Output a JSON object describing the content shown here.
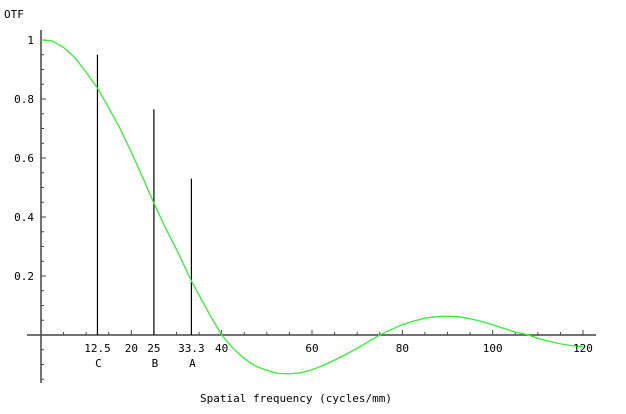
{
  "chart_data": {
    "type": "line",
    "title": "",
    "xlabel": "Spatial frequency (cycles/mm)",
    "ylabel": "OTF",
    "xlim": [
      0,
      120
    ],
    "ylim": [
      -0.16,
      1.0
    ],
    "grid": false,
    "legend": null,
    "x_ticks": [
      {
        "value": 12.5,
        "label": "12.5"
      },
      {
        "value": 20,
        "label": "20"
      },
      {
        "value": 25,
        "label": "25"
      },
      {
        "value": 33.3,
        "label": "33.3"
      },
      {
        "value": 40,
        "label": "40"
      },
      {
        "value": 60,
        "label": "60"
      },
      {
        "value": 80,
        "label": "80"
      },
      {
        "value": 100,
        "label": "100"
      },
      {
        "value": 120,
        "label": "120"
      }
    ],
    "x_minor_tick_step": 5,
    "y_ticks": [
      {
        "value": 0.2,
        "label": "0.2"
      },
      {
        "value": 0.4,
        "label": "0.4"
      },
      {
        "value": 0.6,
        "label": "0.6"
      },
      {
        "value": 0.8,
        "label": "0.8"
      },
      {
        "value": 1.0,
        "label": "1"
      }
    ],
    "y_minor_tick_step": 0.05,
    "series": [
      {
        "name": "OTF",
        "color": "#33ee33",
        "x": [
          0,
          2.5,
          5,
          7.5,
          10,
          12.5,
          15,
          17.5,
          20,
          22.5,
          25,
          27.5,
          30,
          33.3,
          35,
          37.5,
          40,
          42.5,
          45,
          47.5,
          50,
          52.5,
          55,
          57.5,
          60,
          62.5,
          65,
          67.5,
          70,
          72.5,
          75,
          77.5,
          80,
          82.5,
          85,
          87.5,
          90,
          92.5,
          95,
          97.5,
          100,
          102.5,
          105,
          108,
          110,
          112.5,
          115,
          117.5,
          120
        ],
        "y": [
          1.0,
          0.997,
          0.975,
          0.94,
          0.89,
          0.837,
          0.77,
          0.7,
          0.62,
          0.535,
          0.447,
          0.365,
          0.29,
          0.183,
          0.135,
          0.065,
          0.0,
          -0.045,
          -0.08,
          -0.105,
          -0.12,
          -0.13,
          -0.132,
          -0.128,
          -0.118,
          -0.103,
          -0.085,
          -0.066,
          -0.045,
          -0.022,
          0.0,
          0.018,
          0.035,
          0.047,
          0.057,
          0.062,
          0.064,
          0.062,
          0.055,
          0.046,
          0.035,
          0.022,
          0.01,
          0.0,
          -0.012,
          -0.021,
          -0.03,
          -0.036,
          -0.04
        ]
      }
    ],
    "markers": [
      {
        "x": 12.5,
        "height": 0.95,
        "label": "C"
      },
      {
        "x": 25,
        "height": 0.765,
        "label": "B"
      },
      {
        "x": 33.3,
        "height": 0.53,
        "label": "A"
      }
    ]
  }
}
